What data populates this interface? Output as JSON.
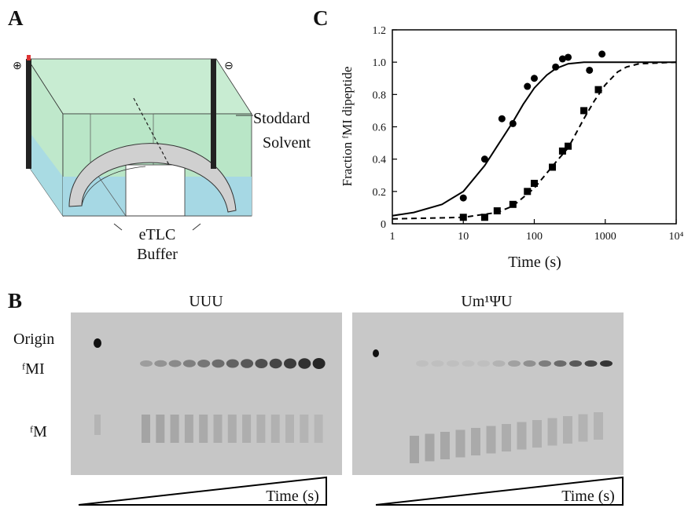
{
  "panels": {
    "a": "A",
    "b": "B",
    "c": "C"
  },
  "diagram": {
    "plus": "⊕",
    "minus": "⊖",
    "solvent": [
      "Stoddard",
      "Solvent"
    ],
    "buffer": [
      "eTLC",
      "Buffer"
    ]
  },
  "gel": {
    "left_title": "UUU",
    "right_title": "Um¹ΨU",
    "rows": [
      "Origin",
      "ᶠMI",
      "ᶠM"
    ],
    "left_time": "Time (s)",
    "right_time": "Time (s)"
  },
  "chart_data": {
    "type": "scatter",
    "xlabel": "Time (s)",
    "ylabel": "Fraction ᶠMI dipeptide",
    "xscale": "log",
    "xlim": [
      1,
      10000
    ],
    "xticks": [
      1,
      10,
      100,
      1000,
      {
        "value": 10000,
        "label": "10⁴"
      }
    ],
    "ylim": [
      0,
      1.2
    ],
    "yticks": [
      0,
      0.2,
      0.4,
      0.6,
      0.8,
      {
        "value": 1,
        "label": "1.0"
      },
      1.2
    ],
    "series": [
      {
        "type": "scatter",
        "marker": "circle",
        "color": "#000000",
        "x": [
          10,
          20,
          35,
          50,
          80,
          100,
          200,
          250,
          300,
          600,
          900
        ],
        "values": [
          0.16,
          0.4,
          0.65,
          0.62,
          0.85,
          0.9,
          0.97,
          1.02,
          1.03,
          0.95,
          1.05
        ]
      },
      {
        "type": "scatter",
        "marker": "square",
        "color": "#000000",
        "x": [
          10,
          20,
          30,
          50,
          80,
          100,
          180,
          250,
          300,
          500,
          800
        ],
        "values": [
          0.04,
          0.04,
          0.08,
          0.12,
          0.2,
          0.25,
          0.35,
          0.45,
          0.48,
          0.7,
          0.83
        ]
      },
      {
        "type": "line",
        "style": "solid",
        "color": "#000000",
        "x": [
          1,
          2,
          5,
          10,
          20,
          30,
          50,
          70,
          100,
          150,
          200,
          300,
          500,
          1000,
          10000
        ],
        "values": [
          0.05,
          0.07,
          0.12,
          0.2,
          0.36,
          0.48,
          0.63,
          0.74,
          0.84,
          0.92,
          0.96,
          0.99,
          1.0,
          1.0,
          1.0
        ]
      },
      {
        "type": "line",
        "style": "dashed",
        "color": "#000000",
        "x": [
          1,
          10,
          30,
          50,
          100,
          200,
          300,
          500,
          700,
          1000,
          1500,
          2000,
          3000,
          10000
        ],
        "values": [
          0.03,
          0.04,
          0.07,
          0.11,
          0.22,
          0.38,
          0.47,
          0.65,
          0.76,
          0.86,
          0.94,
          0.97,
          0.99,
          1.0
        ]
      }
    ]
  }
}
